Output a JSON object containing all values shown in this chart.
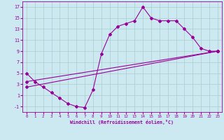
{
  "xlabel": "Windchill (Refroidissement éolien,°C)",
  "background_color": "#cce8f0",
  "grid_color": "#aacccc",
  "line_color": "#990099",
  "xlim": [
    -0.5,
    23.5
  ],
  "ylim": [
    -2,
    18
  ],
  "xticks": [
    0,
    1,
    2,
    3,
    4,
    5,
    6,
    7,
    8,
    9,
    10,
    11,
    12,
    13,
    14,
    15,
    16,
    17,
    18,
    19,
    20,
    21,
    22,
    23
  ],
  "yticks": [
    -1,
    1,
    3,
    5,
    7,
    9,
    11,
    13,
    15,
    17
  ],
  "line1_x": [
    0,
    1,
    2,
    3,
    4,
    5,
    6,
    7,
    8,
    9,
    10,
    11,
    12,
    13,
    14,
    15,
    16,
    17,
    18,
    19,
    20,
    21,
    22,
    23
  ],
  "line1_y": [
    5.0,
    3.5,
    2.5,
    1.5,
    0.5,
    -0.5,
    -1.0,
    -1.2,
    2.0,
    8.5,
    12.0,
    13.5,
    14.0,
    14.5,
    17.0,
    15.0,
    14.5,
    14.5,
    14.5,
    13.0,
    11.5,
    9.5,
    9.0,
    9.0
  ],
  "line2_x": [
    0,
    23
  ],
  "line2_y": [
    3.5,
    9.0
  ],
  "line3_x": [
    0,
    23
  ],
  "line3_y": [
    2.5,
    9.0
  ]
}
